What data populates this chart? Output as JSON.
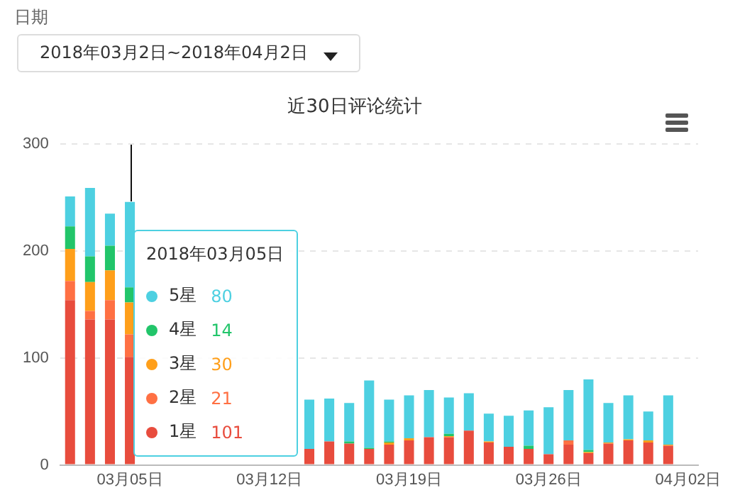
{
  "chart_data": {
    "type": "bar",
    "title": "近30日评论统计",
    "stacked": true,
    "grid": "y",
    "legend": "left",
    "categories": [
      null,
      null,
      null,
      "03月05日",
      null,
      null,
      null,
      null,
      null,
      null,
      "03月12日",
      null,
      null,
      null,
      null,
      null,
      null,
      "03月19日",
      null,
      null,
      null,
      null,
      null,
      null,
      "03月26日",
      null,
      null,
      null,
      null,
      null,
      null,
      "04月02日"
    ],
    "ylim": [
      0,
      300
    ],
    "yticks": [
      0,
      100,
      200,
      300
    ],
    "series": [
      {
        "name": "1星",
        "color": "#e84c3d",
        "values": [
          154,
          136,
          136,
          101,
          null,
          null,
          null,
          null,
          null,
          null,
          null,
          null,
          15,
          22,
          20,
          15,
          19,
          23,
          26,
          26,
          32,
          21,
          17,
          15,
          10,
          19,
          11,
          20,
          23,
          21,
          18,
          0
        ]
      },
      {
        "name": "2星",
        "color": "#ff7043",
        "values": [
          18,
          8,
          18,
          21,
          null,
          null,
          null,
          null,
          null,
          null,
          null,
          null,
          0,
          0,
          0,
          0,
          0,
          0,
          0,
          0,
          0,
          0,
          0,
          0,
          0,
          4,
          0,
          0,
          0,
          0,
          0,
          0
        ]
      },
      {
        "name": "3星",
        "color": "#ff9f1a",
        "values": [
          30,
          27,
          28,
          30,
          null,
          null,
          null,
          null,
          null,
          null,
          null,
          null,
          0,
          0,
          0,
          0,
          2,
          2,
          0,
          1,
          0,
          1,
          0,
          0,
          0,
          0,
          1,
          1,
          1,
          2,
          1,
          0
        ]
      },
      {
        "name": "4星",
        "color": "#22c56a",
        "values": [
          21,
          24,
          23,
          14,
          null,
          null,
          null,
          null,
          null,
          null,
          null,
          null,
          0,
          0,
          2,
          1,
          1,
          0,
          0,
          2,
          0,
          0,
          0,
          3,
          0,
          0,
          2,
          0,
          0,
          0,
          0,
          0
        ]
      },
      {
        "name": "5星",
        "color": "#4dd0e1",
        "values": [
          28,
          64,
          30,
          80,
          null,
          null,
          null,
          null,
          null,
          null,
          null,
          null,
          46,
          40,
          36,
          63,
          39,
          40,
          44,
          34,
          35,
          26,
          29,
          33,
          44,
          47,
          66,
          37,
          41,
          27,
          46,
          0
        ]
      }
    ],
    "annotations": [
      "日期",
      "2018年03月2日~2018年04月2日",
      {
        "text": "2018年03月05日",
        "x": "03月05日"
      },
      "80",
      "14",
      "30",
      "21",
      "101"
    ]
  }
}
